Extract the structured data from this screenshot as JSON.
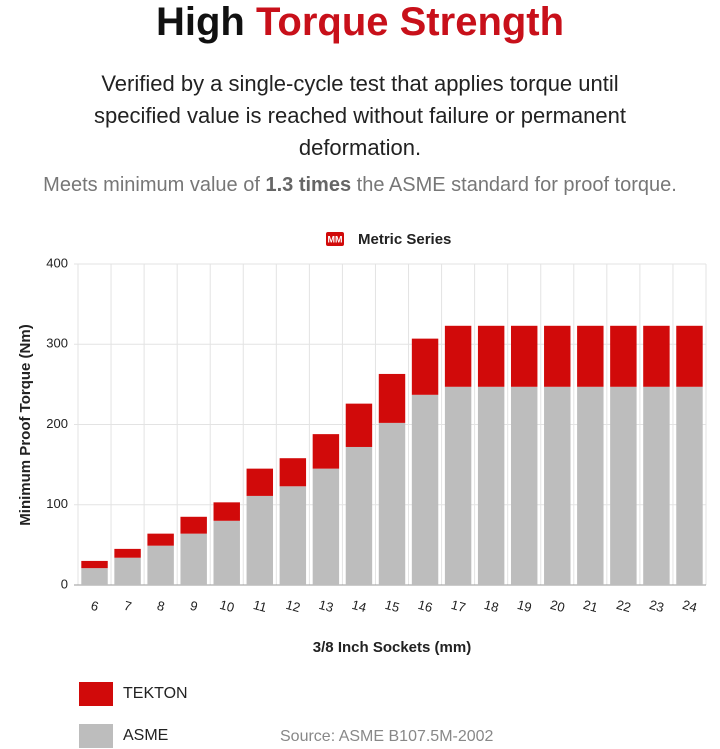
{
  "header": {
    "title_parts": [
      "High",
      "Torque Strength"
    ],
    "description": "Verified by a single-cycle test that applies torque until specified value is reached without failure or permanent deformation.",
    "note_parts": [
      "Meets minimum value of",
      "1.3 times",
      "the ASME standard for proof torque."
    ]
  },
  "badge": "MM",
  "chart_data": {
    "type": "bar",
    "stacked": true,
    "title": "Metric Series",
    "x_label": "3/8 Inch Sockets (mm)",
    "y_label": "Minimum Proof Torque (Nm)",
    "categories": [
      "6",
      "7",
      "8",
      "9",
      "10",
      "11",
      "12",
      "13",
      "14",
      "15",
      "16",
      "17",
      "18",
      "19",
      "20",
      "21",
      "22",
      "23",
      "24"
    ],
    "series": [
      {
        "name": "ASME",
        "color": "#bdbdbd",
        "values": [
          21,
          34,
          49,
          64,
          80,
          111,
          123,
          145,
          172,
          202,
          237,
          247,
          247,
          247,
          247,
          247,
          247,
          247,
          247
        ]
      },
      {
        "name": "TEKTON",
        "color": "#d10a0a",
        "values": [
          9,
          11,
          15,
          21,
          23,
          34,
          35,
          43,
          54,
          61,
          70,
          76,
          76,
          76,
          76,
          76,
          76,
          76,
          76
        ]
      }
    ],
    "ylim": [
      0,
      400
    ],
    "yticks": [
      0,
      100,
      200,
      300,
      400
    ],
    "grid": true
  },
  "source": "Source: ASME B107.5M-2002"
}
